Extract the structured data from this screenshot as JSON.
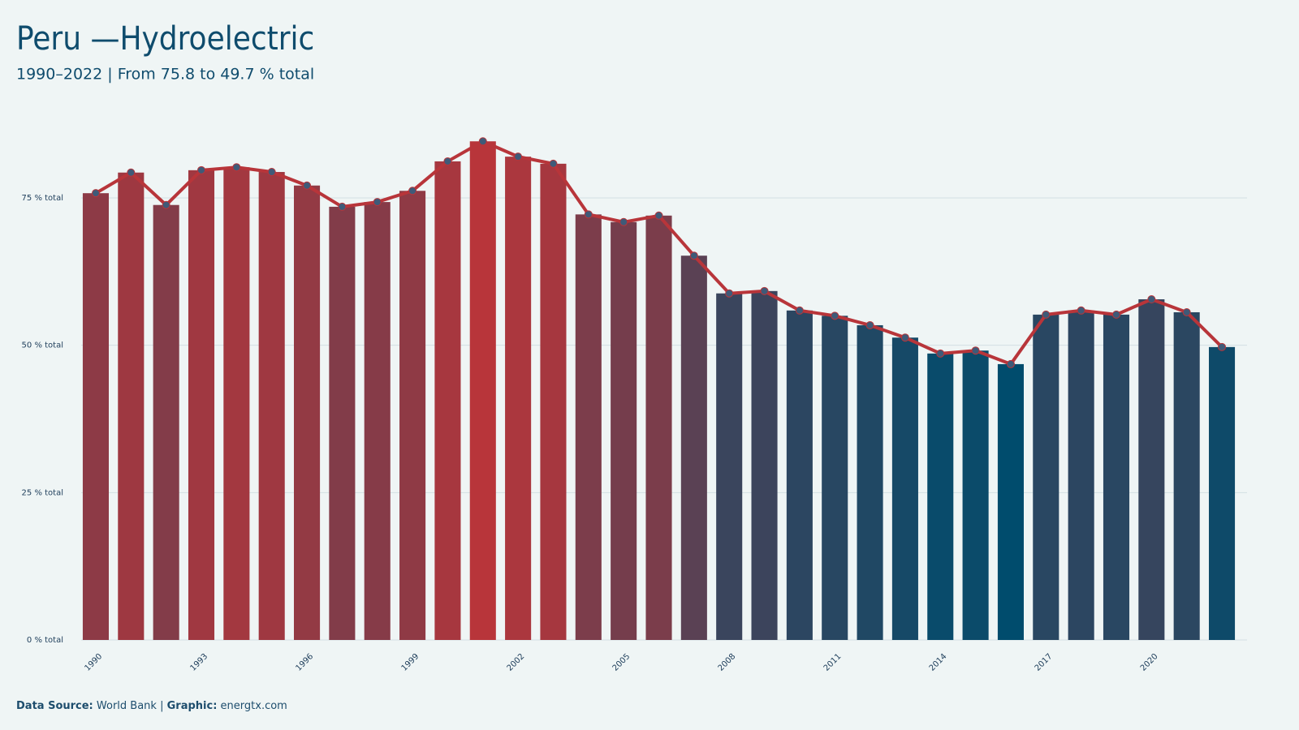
{
  "chart_data": {
    "type": "bar",
    "title": "Peru —Hydroelectric",
    "subtitle": "1990–2022 | From 75.8 to 49.7 % total",
    "categories": [
      "1990",
      null,
      null,
      "1993",
      null,
      null,
      "1996",
      null,
      null,
      "1999",
      null,
      null,
      "2002",
      null,
      null,
      "2005",
      null,
      null,
      "2008",
      null,
      null,
      "2011",
      null,
      null,
      "2014",
      null,
      null,
      "2017",
      null,
      null,
      "2020",
      null,
      null
    ],
    "values": [
      75.8,
      79.3,
      73.8,
      79.7,
      80.2,
      79.4,
      77.1,
      73.5,
      74.3,
      76.2,
      81.2,
      84.6,
      82.0,
      80.8,
      72.2,
      70.9,
      72.0,
      65.2,
      58.8,
      59.2,
      55.9,
      55.0,
      53.4,
      51.3,
      48.6,
      49.1,
      46.8,
      55.2,
      55.9,
      55.2,
      57.8,
      55.6,
      49.7
    ],
    "color_low": "#004c6d",
    "color_high": "#b8353a",
    "line": true,
    "line_color": "#b8353a",
    "marker_color": "#3f5a78",
    "ylim": [
      0,
      90
    ],
    "yticks": [
      {
        "value": 0,
        "label": "0 % total"
      },
      {
        "value": 25,
        "label": "25 % total"
      },
      {
        "value": 50,
        "label": "50 % total"
      },
      {
        "value": 75,
        "label": "75 % total"
      }
    ],
    "grid": true,
    "footer": {
      "source_label": "Data Source:",
      "source": "World Bank",
      "separator": "|",
      "graphic_label": "Graphic:",
      "graphic": "energtx.com"
    }
  }
}
